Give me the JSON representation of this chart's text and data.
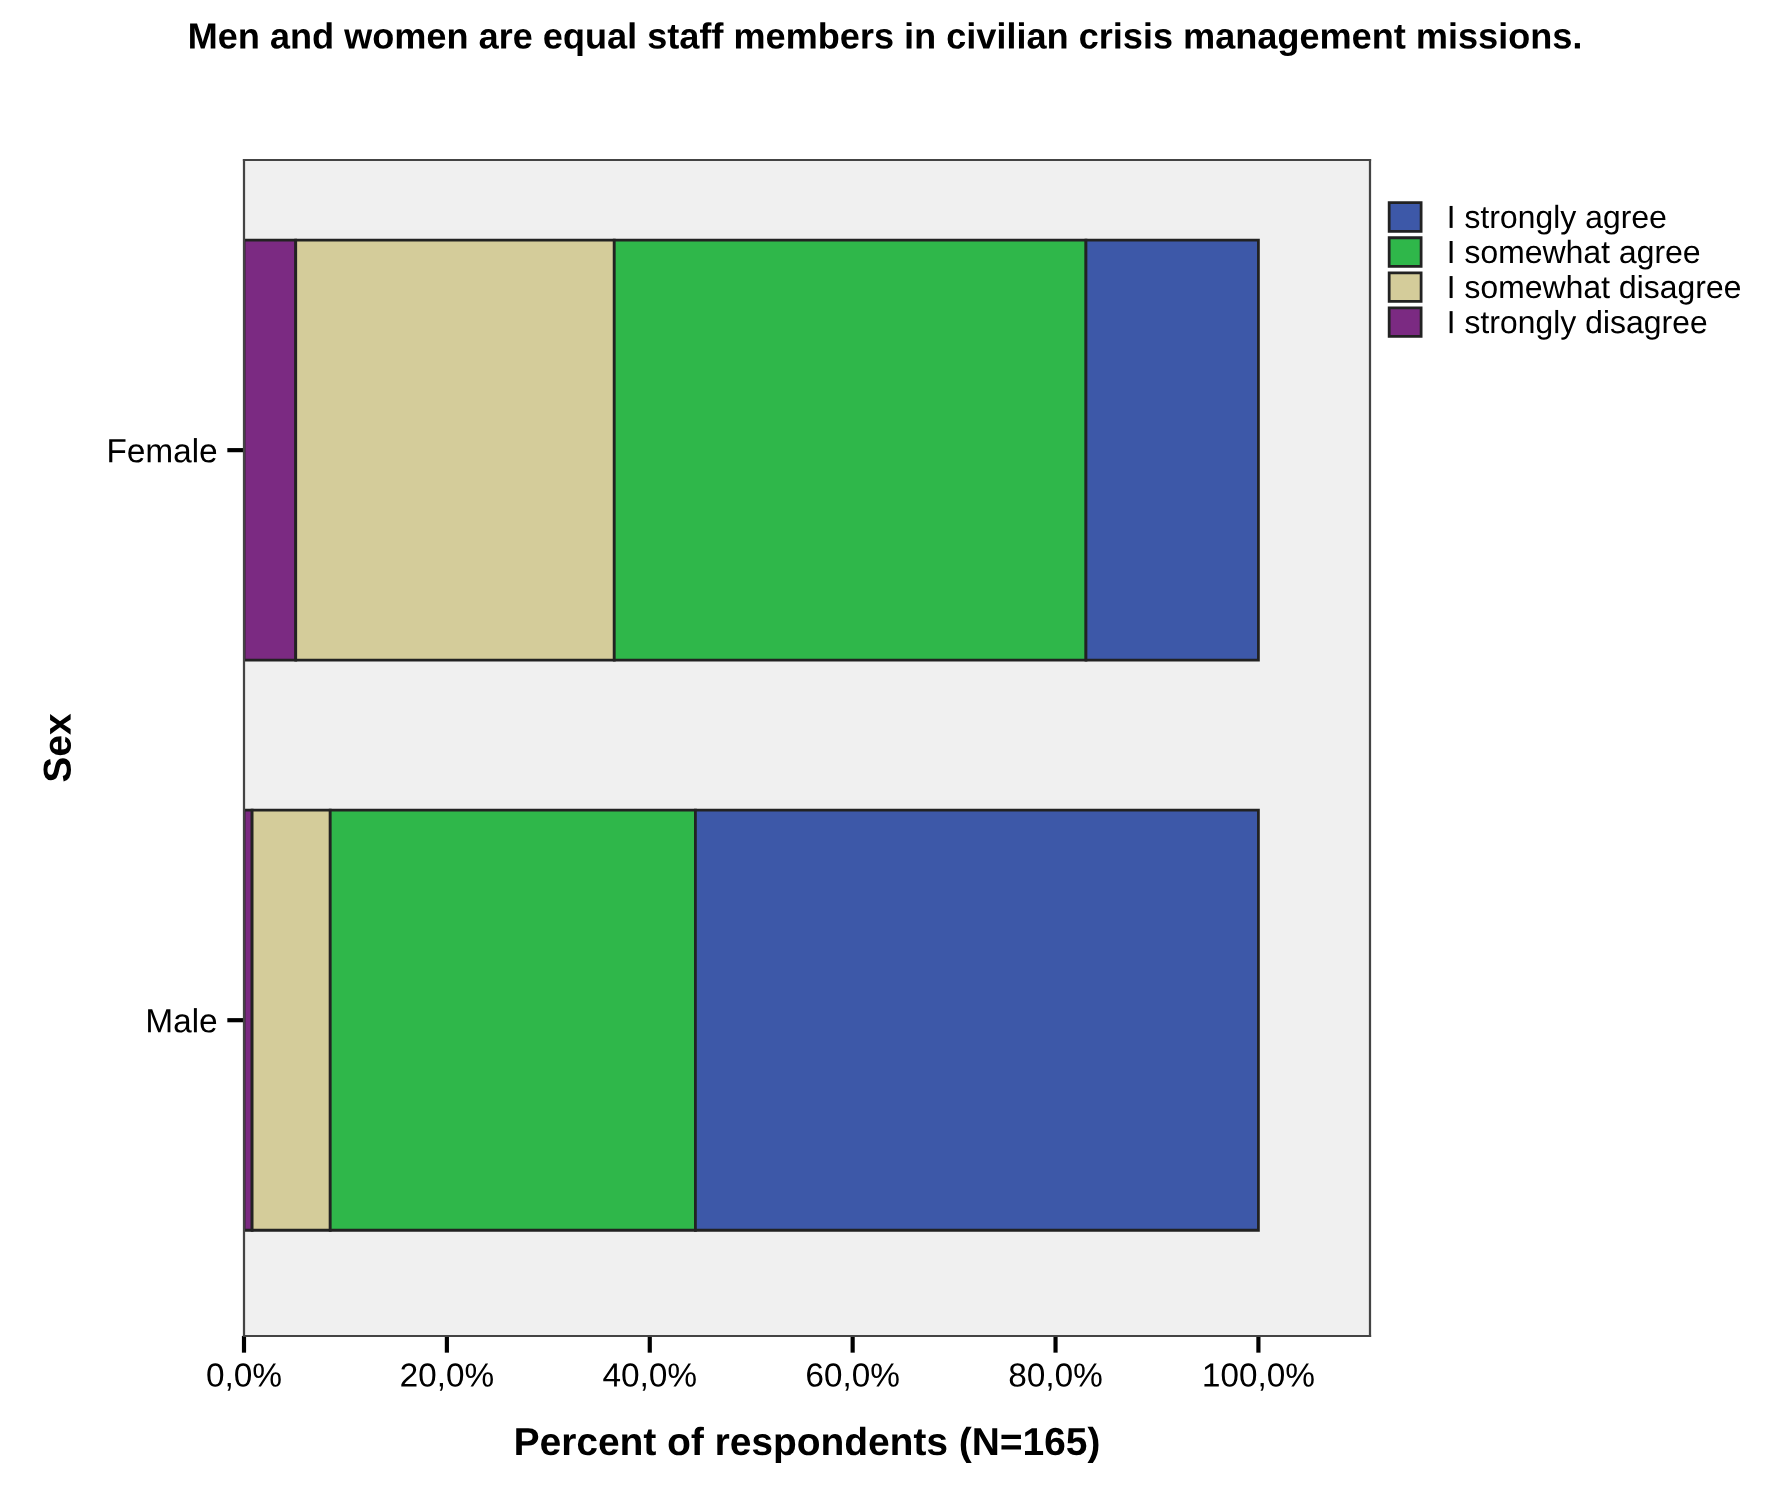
{
  "chart_data": {
    "type": "bar",
    "orientation": "horizontal",
    "stacked": true,
    "title": "Men and women are equal staff members in civilian crisis management missions.",
    "xlabel": "Percent of respondents (N=165)",
    "ylabel": "Sex",
    "categories": [
      "Female",
      "Male"
    ],
    "series": [
      {
        "name": "I strongly disagree",
        "color": "#7b2a82",
        "values": [
          5.1,
          0.8
        ]
      },
      {
        "name": "I somewhat disagree",
        "color": "#d4cc9a",
        "values": [
          31.4,
          7.7
        ]
      },
      {
        "name": "I somewhat agree",
        "color": "#2fb74a",
        "values": [
          46.5,
          36.0
        ]
      },
      {
        "name": "I strongly agree",
        "color": "#3d58a8",
        "values": [
          17.0,
          55.5
        ]
      }
    ],
    "xlim": [
      0,
      111
    ],
    "xticks": [
      {
        "value": 0,
        "label": "0,0%"
      },
      {
        "value": 20,
        "label": "20,0%"
      },
      {
        "value": 40,
        "label": "40,0%"
      },
      {
        "value": 60,
        "label": "60,0%"
      },
      {
        "value": 80,
        "label": "80,0%"
      },
      {
        "value": 100,
        "label": "100,0%"
      }
    ],
    "grid": false,
    "legend": "top right"
  }
}
